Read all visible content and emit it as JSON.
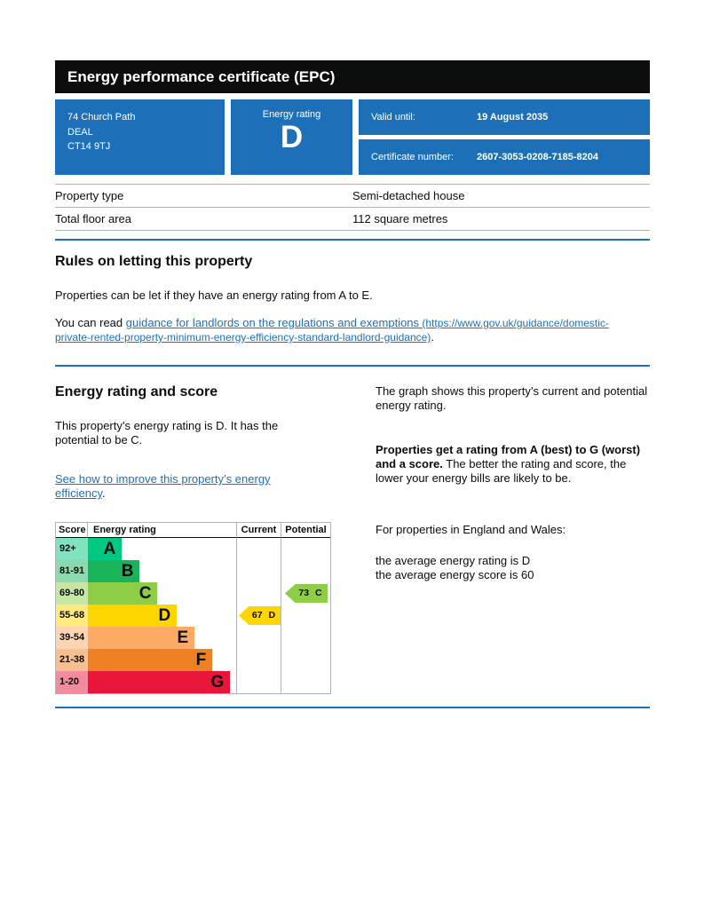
{
  "header": {
    "title": "Energy performance certificate (EPC)"
  },
  "summary": {
    "address_lines": [
      "74 Church Path",
      "DEAL",
      "CT14 9TJ"
    ],
    "rating_label": "Energy rating",
    "rating_value": "D",
    "valid_until_label": "Valid until:",
    "valid_until_value": "19 August 2035",
    "certificate_label": "Certificate number:",
    "certificate_value": "2607-3053-0208-7185-8204"
  },
  "property_table": {
    "rows": [
      {
        "label": "Property type",
        "value": "Semi-detached house"
      },
      {
        "label": "Total floor area",
        "value": "112 square metres"
      }
    ]
  },
  "rules": {
    "heading": "Rules on letting this property",
    "para1": "Properties can be let if they have an energy rating from A to E.",
    "para2_prefix": "You can read ",
    "link_text": "guidance for landlords on the regulations and exemptions",
    "link_url": " (https://www.gov.uk/guidance/domestic-private-rented-property-minimum-energy-efficiency-standard-landlord-guidance)",
    "para2_suffix": "."
  },
  "rating_section": {
    "heading": "Energy rating and score",
    "para1": "This property’s energy rating is D. It has the potential to be C.",
    "improve_link": "See how to improve this property’s energy efficiency",
    "improve_link_suffix": ".",
    "right_para1": "The graph shows this property’s current and potential energy rating.",
    "right_para2_bold": "Properties get a rating from A (best) to G (worst) and a score.",
    "right_para2_rest": " The better the rating and score, the lower your energy bills are likely to be.",
    "right_para3": "For properties in England and Wales:",
    "right_para4_line1": "the average energy rating is D",
    "right_para4_line2": "the average energy score is 60"
  },
  "chart_data": {
    "type": "epc-rating-bands",
    "headers": {
      "score": "Score",
      "rating": "Energy rating",
      "current": "Current",
      "potential": "Potential"
    },
    "bands": [
      {
        "score_range": "92+",
        "letter": "A",
        "color": "#00c781",
        "tint": "#80e3c0",
        "bar_pct": 23
      },
      {
        "score_range": "81-91",
        "letter": "B",
        "color": "#19b459",
        "tint": "#8cdaac",
        "bar_pct": 35
      },
      {
        "score_range": "69-80",
        "letter": "C",
        "color": "#8dce46",
        "tint": "#c6e7a3",
        "bar_pct": 47
      },
      {
        "score_range": "55-68",
        "letter": "D",
        "color": "#ffd500",
        "tint": "#ffea80",
        "bar_pct": 60
      },
      {
        "score_range": "39-54",
        "letter": "E",
        "color": "#fcaa65",
        "tint": "#fed5b2",
        "bar_pct": 72
      },
      {
        "score_range": "21-38",
        "letter": "F",
        "color": "#ef8023",
        "tint": "#f7c091",
        "bar_pct": 84
      },
      {
        "score_range": "1-20",
        "letter": "G",
        "color": "#e9153b",
        "tint": "#f48a9d",
        "bar_pct": 96
      }
    ],
    "current": {
      "score": 67,
      "letter": "D",
      "label": "67 D",
      "color": "#ffd500",
      "band_index": 3
    },
    "potential": {
      "score": 73,
      "letter": "C",
      "label": "73 C",
      "color": "#8dce46",
      "band_index": 2
    }
  },
  "colors": {
    "govuk_blue": "#1d70b8",
    "header_black": "#0b0c0c",
    "border_grey": "#b1b4b6"
  }
}
